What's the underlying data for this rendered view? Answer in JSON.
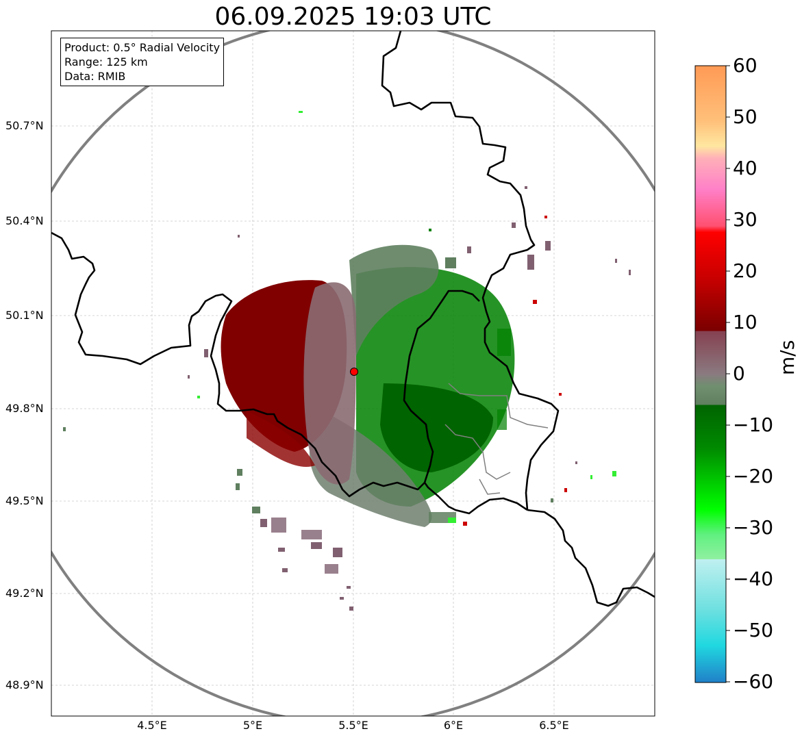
{
  "title": "06.09.2025 19:03 UTC",
  "info": {
    "product": "Product: 0.5° Radial Velocity",
    "range": "Range: 125 km",
    "data": "Data: RMIB"
  },
  "axes": {
    "y_ticks": [
      "50.7°N",
      "50.4°N",
      "50.1°N",
      "49.8°N",
      "49.5°N",
      "49.2°N",
      "48.9°N"
    ],
    "x_ticks": [
      "4.5°E",
      "5°E",
      "5.5°E",
      "6°E",
      "6.5°E"
    ]
  },
  "colorbar": {
    "ticks": [
      "60",
      "50",
      "40",
      "30",
      "20",
      "10",
      "0",
      "−10",
      "−20",
      "−30",
      "−40",
      "−50",
      "−60"
    ],
    "unit": "m/s",
    "min": -60,
    "max": 60
  },
  "radar": {
    "site_lon": 5.5,
    "site_lat": 49.91
  }
}
